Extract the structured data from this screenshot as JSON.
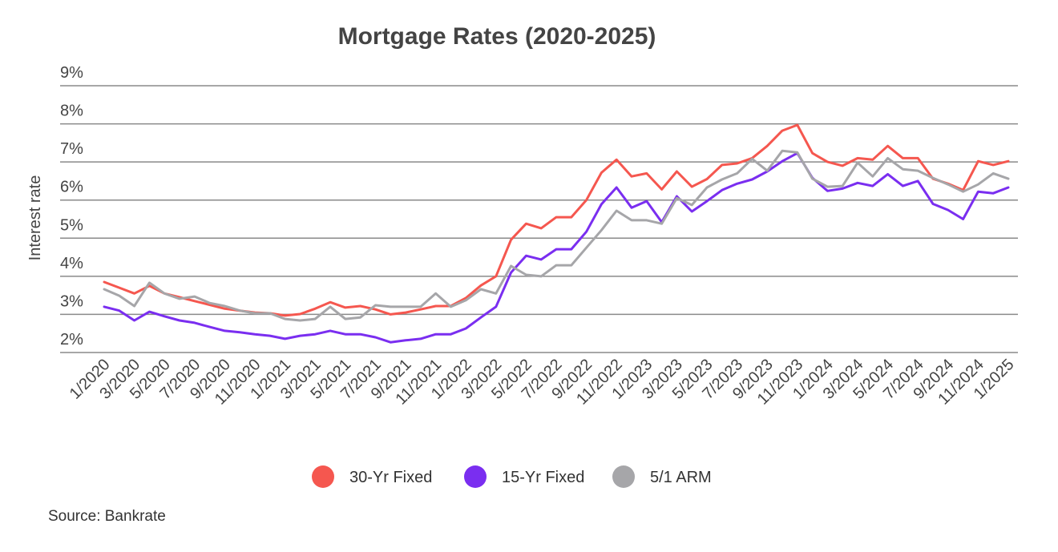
{
  "chart_data": {
    "type": "line",
    "title": "Mortgage Rates (2020-2025)",
    "y_label": "Interest rate",
    "source": "Source: Bankrate",
    "categories": [
      "1/2020",
      null,
      "3/2020",
      null,
      "5/2020",
      null,
      "7/2020",
      null,
      "9/2020",
      null,
      "11/2020",
      null,
      "1/2021",
      null,
      "3/2021",
      null,
      "5/2021",
      null,
      "7/2021",
      null,
      "9/2021",
      null,
      "11/2021",
      null,
      "1/2022",
      null,
      "3/2022",
      null,
      "5/2022",
      null,
      "7/2022",
      null,
      "9/2022",
      null,
      "11/2022",
      null,
      "1/2023",
      null,
      "3/2023",
      null,
      "5/2023",
      null,
      "7/2023",
      null,
      "9/2023",
      null,
      "11/2023",
      null,
      "1/2024",
      null,
      "3/2024",
      null,
      "5/2024",
      null,
      "7/2024",
      null,
      "9/2024",
      null,
      "11/2024",
      null,
      "1/2025"
    ],
    "series": [
      {
        "name": "30-Yr Fixed",
        "color": "#f5574f",
        "values": [
          3.85,
          3.7,
          3.55,
          3.75,
          3.55,
          3.45,
          3.35,
          3.25,
          3.15,
          3.1,
          3.05,
          3.03,
          2.97,
          3.01,
          3.15,
          3.32,
          3.18,
          3.22,
          3.13,
          3.0,
          3.05,
          3.13,
          3.22,
          3.22,
          3.43,
          3.76,
          4.0,
          4.96,
          5.38,
          5.26,
          5.55,
          5.55,
          6.0,
          6.72,
          7.06,
          6.62,
          6.7,
          6.28,
          6.75,
          6.35,
          6.55,
          6.92,
          6.96,
          7.1,
          7.42,
          7.82,
          7.97,
          7.23,
          7.0,
          6.9,
          7.1,
          7.06,
          7.42,
          7.1,
          7.1,
          6.56,
          6.43,
          6.26,
          7.02,
          6.92,
          7.02
        ]
      },
      {
        "name": "15-Yr Fixed",
        "color": "#7a2ef0",
        "values": [
          3.2,
          3.1,
          2.84,
          3.07,
          2.95,
          2.84,
          2.78,
          2.67,
          2.57,
          2.53,
          2.48,
          2.44,
          2.36,
          2.44,
          2.48,
          2.57,
          2.48,
          2.48,
          2.4,
          2.27,
          2.32,
          2.36,
          2.48,
          2.48,
          2.63,
          2.92,
          3.2,
          4.1,
          4.54,
          4.44,
          4.71,
          4.71,
          5.17,
          5.89,
          6.33,
          5.8,
          5.97,
          5.42,
          6.1,
          5.7,
          5.97,
          6.26,
          6.43,
          6.54,
          6.75,
          7.02,
          7.23,
          6.58,
          6.24,
          6.3,
          6.45,
          6.37,
          6.68,
          6.37,
          6.5,
          5.9,
          5.74,
          5.5,
          6.22,
          6.18,
          6.33
        ]
      },
      {
        "name": "5/1 ARM",
        "color": "#a6a6a9",
        "values": [
          3.66,
          3.49,
          3.22,
          3.83,
          3.55,
          3.41,
          3.47,
          3.3,
          3.22,
          3.1,
          3.03,
          3.03,
          2.88,
          2.84,
          2.88,
          3.2,
          2.88,
          2.92,
          3.24,
          3.2,
          3.2,
          3.2,
          3.55,
          3.2,
          3.37,
          3.66,
          3.55,
          4.27,
          4.04,
          4.0,
          4.29,
          4.29,
          4.75,
          5.21,
          5.72,
          5.47,
          5.47,
          5.38,
          6.05,
          5.87,
          6.33,
          6.54,
          6.7,
          7.08,
          6.77,
          7.29,
          7.25,
          6.56,
          6.35,
          6.37,
          6.98,
          6.62,
          7.1,
          6.81,
          6.77,
          6.58,
          6.41,
          6.22,
          6.41,
          6.7,
          6.56
        ]
      }
    ],
    "ylim": [
      2,
      9
    ],
    "yticks": [
      {
        "value": 2,
        "label": "2%"
      },
      {
        "value": 3,
        "label": "3%"
      },
      {
        "value": 4,
        "label": "4%"
      },
      {
        "value": 5,
        "label": "5%"
      },
      {
        "value": 6,
        "label": "6%"
      },
      {
        "value": 7,
        "label": "7%"
      },
      {
        "value": 8,
        "label": "8%"
      },
      {
        "value": 9,
        "label": "9%"
      }
    ],
    "grid": true,
    "legend": "bottom"
  }
}
